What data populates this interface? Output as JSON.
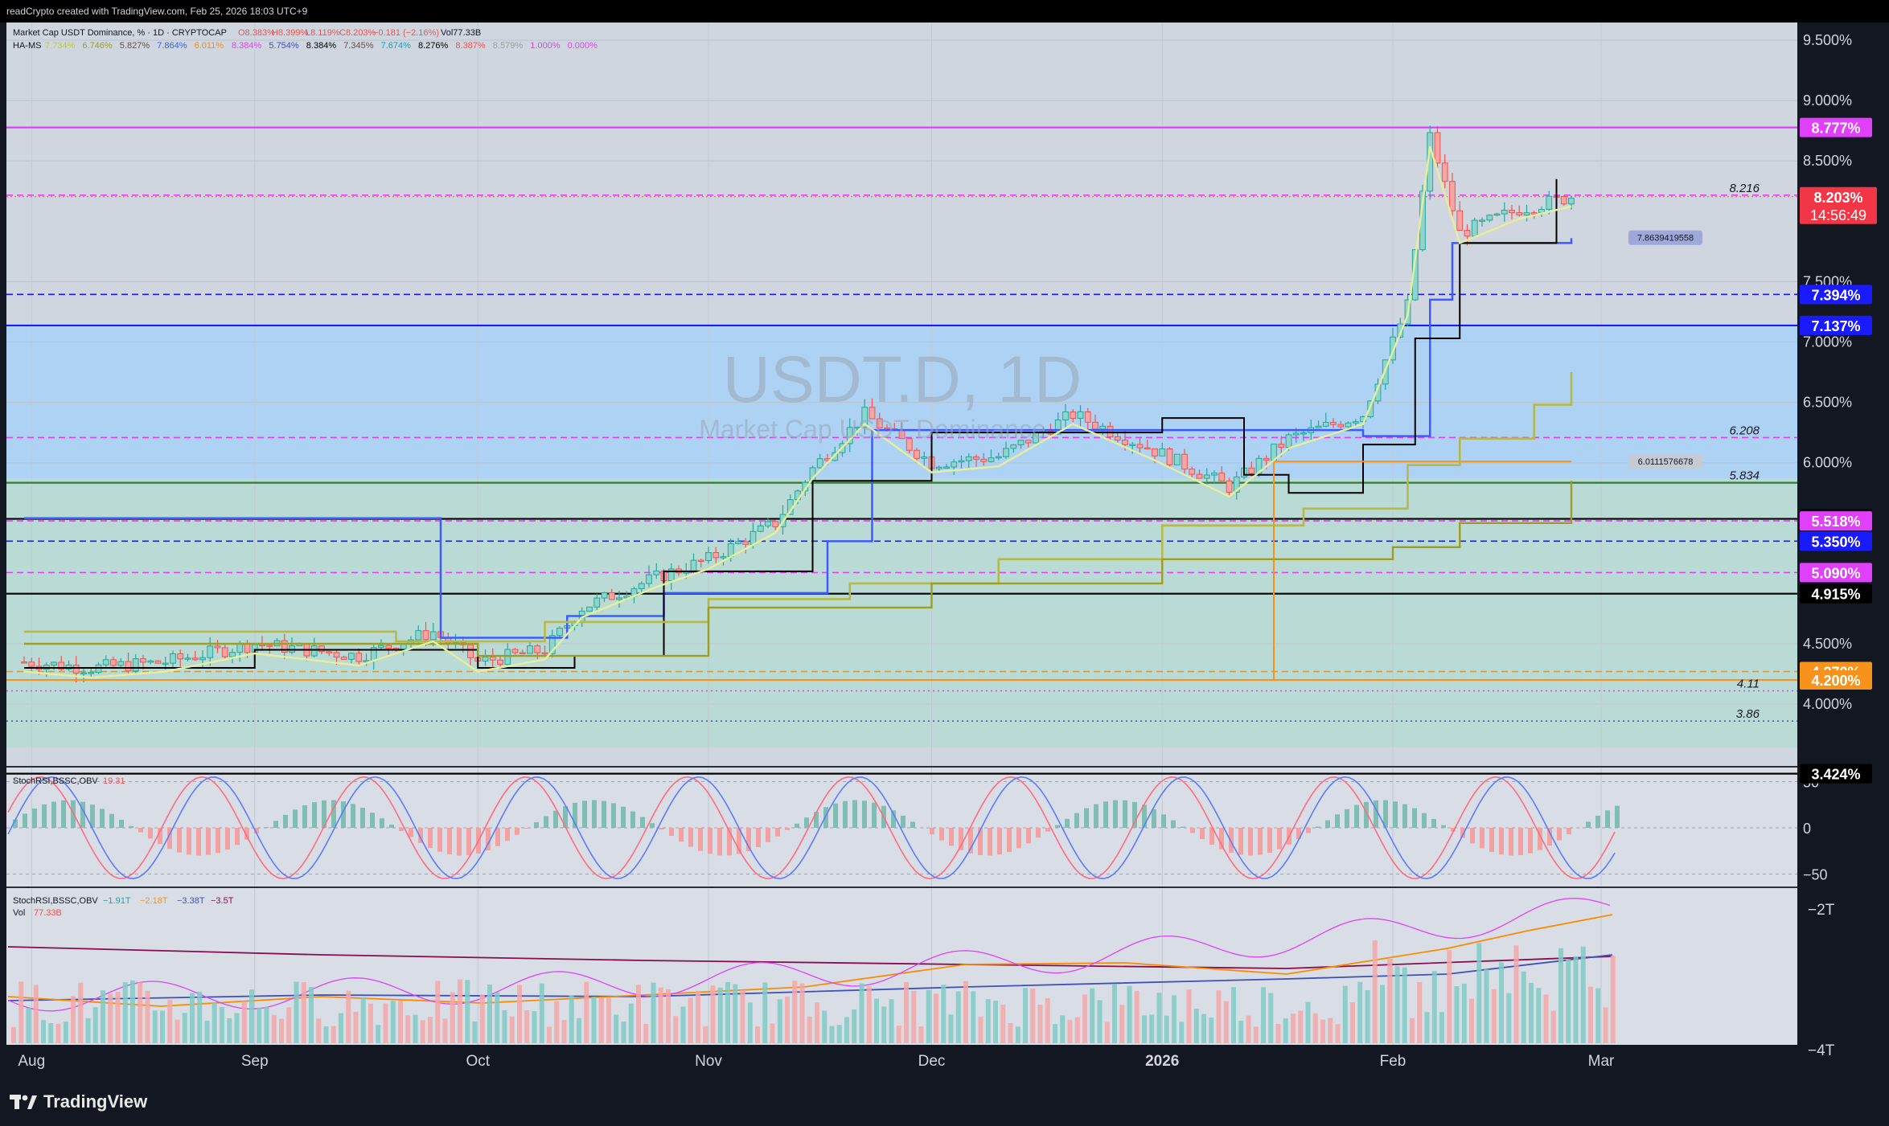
{
  "header": {
    "caption": "readCrypto created with TradingView.com, Feb 25, 2026 18:03 UTC+9",
    "symbol_line": [
      "Market Cap USDT Dominance, % · 1D · CRYPTOCAP",
      "O8.383%",
      "H8.399%",
      "L8.119%",
      "C8.203%",
      "−0.181 (−2.16%)",
      "Vol77.33B"
    ],
    "indicator_line": [
      "HA-MS",
      "7.734%",
      "6.746%",
      "5.827%",
      "7.864%",
      "6.011%",
      "8.384%",
      "5.754%",
      "8.384%",
      "7.345%",
      "7.674%",
      "8.276%",
      "8.387%",
      "8.579%",
      "1.000%",
      "0.000%"
    ]
  },
  "watermark": {
    "big": "USDT.D, 1D",
    "small": "Market Cap USDT Dominance"
  },
  "colors": {
    "background": "#131722",
    "chart_bg": "#cfd6e0",
    "up": "#26a69a",
    "down": "#ef5350",
    "magenta": "#e040fb",
    "blue_line": "#2962ff",
    "orange": "#f7931a",
    "olive": "#9e9d24"
  },
  "chart_data": [
    {
      "type": "candlestick",
      "title": "",
      "y_unit": "%",
      "ylim": [
        3.4,
        9.55
      ],
      "x_labels": [
        "Aug",
        "Sep",
        "Oct",
        "Nov",
        "Dec",
        "2026",
        "Feb",
        "Mar"
      ],
      "y_ticks": [
        "9.500%",
        "9.000%",
        "8.500%",
        "7.500%",
        "7.000%",
        "6.500%",
        "6.000%",
        "4.500%",
        "4.000%"
      ],
      "price_trend": [
        [
          "Aug 1",
          4.35
        ],
        [
          "Aug 10",
          4.3
        ],
        [
          "Aug 20",
          4.35
        ],
        [
          "Sep 1",
          4.5
        ],
        [
          "Sep 15",
          4.4
        ],
        [
          "Sep 25",
          4.6
        ],
        [
          "Oct 1",
          4.35
        ],
        [
          "Oct 10",
          4.45
        ],
        [
          "Oct 15",
          4.8
        ],
        [
          "Oct 25",
          5.05
        ],
        [
          "Nov 1",
          5.2
        ],
        [
          "Nov 10",
          5.5
        ],
        [
          "Nov 15",
          5.95
        ],
        [
          "Nov 22",
          6.4
        ],
        [
          "Dec 1",
          6.0
        ],
        [
          "Dec 10",
          6.05
        ],
        [
          "Dec 20",
          6.4
        ],
        [
          "Dec 31",
          6.1
        ],
        [
          "Jan 10",
          5.8
        ],
        [
          "Jan 18",
          6.2
        ],
        [
          "Jan 28",
          6.4
        ],
        [
          "Feb 3",
          7.3
        ],
        [
          "Feb 6",
          8.7
        ],
        [
          "Feb 10",
          7.9
        ],
        [
          "Feb 18",
          8.1
        ],
        [
          "Feb 25",
          8.203
        ]
      ],
      "horizontal_levels": [
        {
          "label": "8.777%",
          "color": "#e040fb",
          "style": "solid"
        },
        {
          "label": "8.216",
          "color": "#e040fb",
          "style": "dashed"
        },
        {
          "label": "7.394%",
          "color": "#1a1aff",
          "style": "dashed"
        },
        {
          "label": "7.137%",
          "color": "#1a1aff",
          "style": "solid"
        },
        {
          "label": "6.208",
          "color": "#e040fb",
          "style": "dashed"
        },
        {
          "label": "5.834",
          "color": "#2e7d32",
          "style": "solid"
        },
        {
          "label": "5.535%",
          "color": "#000000",
          "style": "solid"
        },
        {
          "label": "5.518%",
          "color": "#e040fb",
          "style": "dashed"
        },
        {
          "label": "5.350%",
          "color": "#1a1aff",
          "style": "dashed"
        },
        {
          "label": "5.090%",
          "color": "#e040fb",
          "style": "dashed"
        },
        {
          "label": "4.915%",
          "color": "#000000",
          "style": "solid"
        },
        {
          "label": "4.270%",
          "color": "#f7931a",
          "style": "dashed"
        },
        {
          "label": "4.200%",
          "color": "#f7931a",
          "style": "solid"
        },
        {
          "label": "4.11",
          "color": "#e040fb",
          "style": "dotted"
        },
        {
          "label": "3.86",
          "color": "#3f51b5",
          "style": "dotted"
        },
        {
          "label": "3.424%",
          "color": "#000000",
          "style": "solid"
        }
      ],
      "last_price": {
        "value": "8.203%",
        "countdown": "14:56:49"
      },
      "callouts": [
        "7.8639419558",
        "6.0111576678"
      ]
    },
    {
      "type": "line",
      "title": "StochRSI,BSSC,OBV",
      "value_label": "19.31",
      "y_ticks": [
        "50",
        "0",
        "−50"
      ]
    },
    {
      "type": "line",
      "title": "StochRSI,BSSC,OBV",
      "values_label": [
        "−1.91T",
        "−2.18T",
        "−3.38T",
        "−3.5T"
      ],
      "volume_label": "Vol",
      "volume_value": "77.33B",
      "y_ticks": [
        "−2T",
        "−4T"
      ]
    }
  ],
  "brand": {
    "name": "TradingView"
  }
}
